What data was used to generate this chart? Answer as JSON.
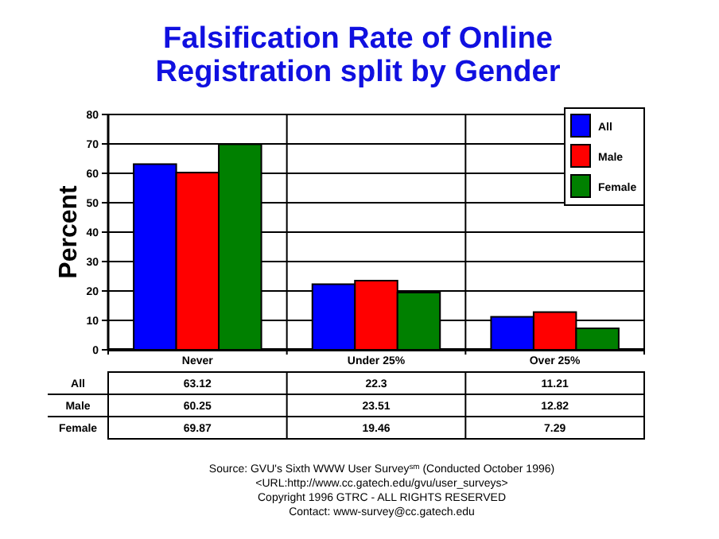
{
  "chart_data": {
    "type": "bar",
    "title": "Falsification Rate of Online Registration split by Gender",
    "ylabel": "Percent",
    "categories": [
      "Never",
      "Under 25%",
      "Over 25%"
    ],
    "series": [
      {
        "name": "All",
        "color": "#0000ff",
        "values": [
          63.12,
          22.3,
          11.21
        ]
      },
      {
        "name": "Male",
        "color": "#ff0000",
        "values": [
          60.25,
          23.51,
          12.82
        ]
      },
      {
        "name": "Female",
        "color": "#008000",
        "values": [
          69.87,
          19.46,
          7.29
        ]
      }
    ],
    "ylim": [
      0,
      80
    ],
    "yticks": [
      0,
      10,
      20,
      30,
      40,
      50,
      60,
      70,
      80
    ],
    "grid": true,
    "legend": "top right",
    "data_labels": true,
    "annotations": [
      "Source: GVU's Sixth WWW User Survey$^{sm}$ (Conducted October 1996)",
      "<URL:http://www.cc.gatech.edu/gvu/user_surveys>",
      "Copyright 1996 GTRC - ALL RIGHTS RESERVED",
      "Contact: www-survey@cc.gatech.edu"
    ]
  }
}
